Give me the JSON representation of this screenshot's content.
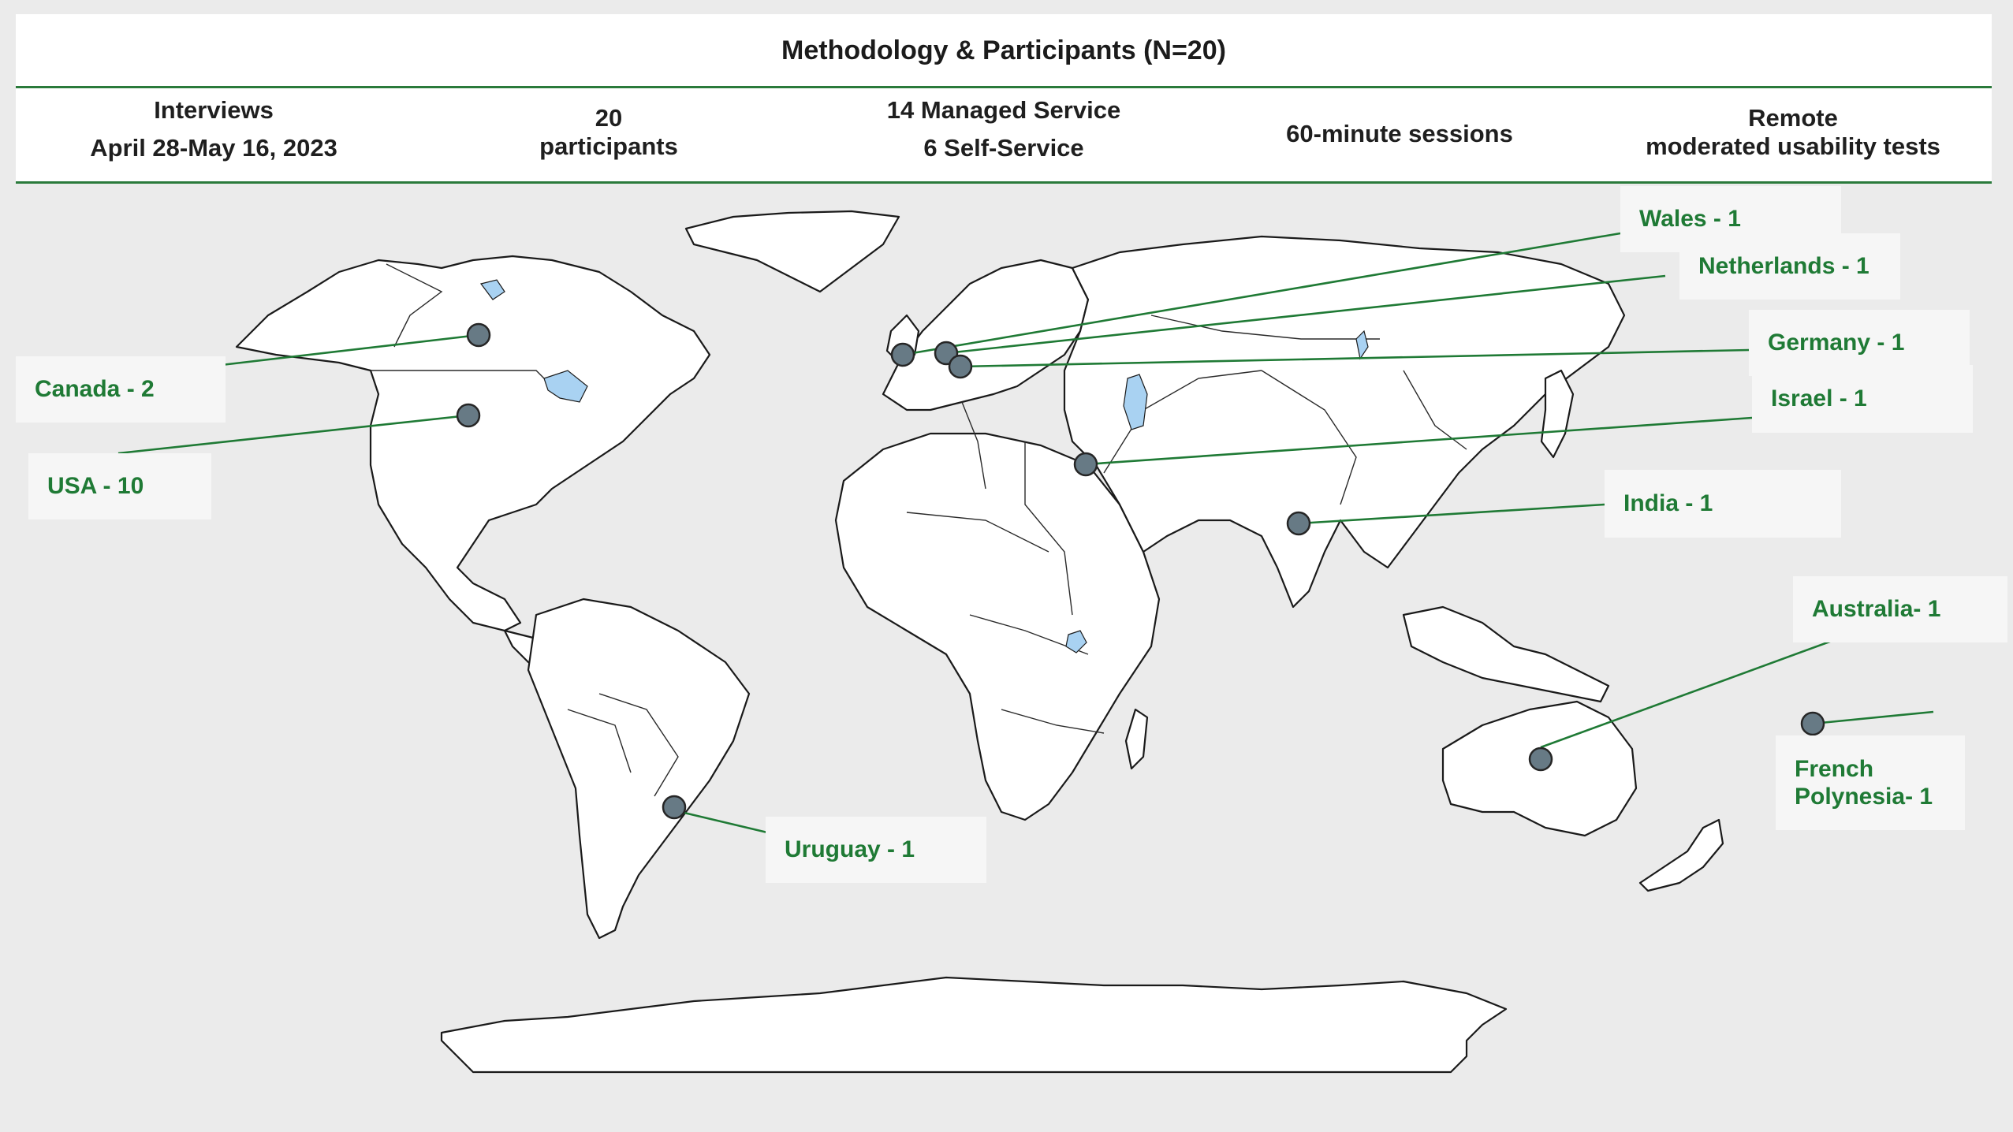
{
  "title": "Methodology & Participants (N=20)",
  "stats": [
    {
      "line1": "Interviews",
      "line2": "April 28-May 16, 2023"
    },
    {
      "line1": "20",
      "line2": "participants"
    },
    {
      "line1": "14 Managed Service",
      "line2": "6 Self-Service"
    },
    {
      "line1": "60-minute sessions",
      "line2": ""
    },
    {
      "line1": "Remote",
      "line2": "moderated usability tests"
    }
  ],
  "locations": [
    {
      "label": "Canada - 2",
      "country": "Canada",
      "participants": 2
    },
    {
      "label": "USA - 10",
      "country": "USA",
      "participants": 10
    },
    {
      "label": "Wales - 1",
      "country": "Wales",
      "participants": 1
    },
    {
      "label": "Netherlands - 1",
      "country": "Netherlands",
      "participants": 1
    },
    {
      "label": "Germany - 1",
      "country": "Germany",
      "participants": 1
    },
    {
      "label": "Israel - 1",
      "country": "Israel",
      "participants": 1
    },
    {
      "label": "India - 1",
      "country": "India",
      "participants": 1
    },
    {
      "label": "Australia- 1",
      "country": "Australia",
      "participants": 1
    },
    {
      "label": "French Polynesia- 1",
      "country": "French Polynesia",
      "participants": 1
    },
    {
      "label": "Uruguay - 1",
      "country": "Uruguay",
      "participants": 1
    }
  ],
  "colors": {
    "accent": "#1f7a35",
    "marker": "#677a85",
    "background": "#ebebeb",
    "water": "#a9d2f2"
  }
}
